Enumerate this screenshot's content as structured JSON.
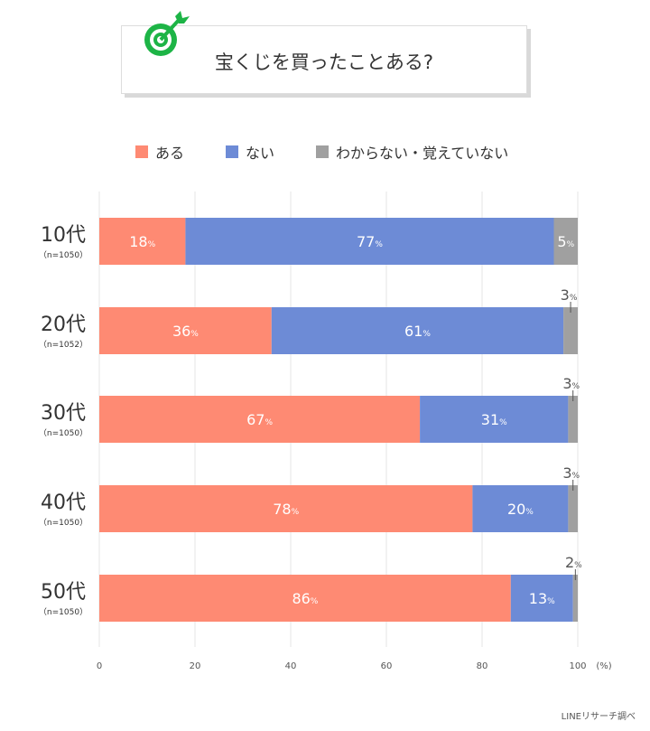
{
  "title": "宝くじを買ったことある?",
  "source": "LINEリサーチ調べ",
  "chart_data": {
    "type": "bar",
    "orientation": "horizontal",
    "stacked": true,
    "categories": [
      "10代",
      "20代",
      "30代",
      "40代",
      "50代"
    ],
    "sample_sizes": [
      "（n=1050）",
      "（n=1052）",
      "（n=1050）",
      "（n=1050）",
      "（n=1050）"
    ],
    "series": [
      {
        "name": "ある",
        "color": "#fe8a73",
        "values": [
          18,
          36,
          67,
          78,
          86
        ]
      },
      {
        "name": "ない",
        "color": "#6d8bd6",
        "values": [
          77,
          61,
          31,
          20,
          13
        ]
      },
      {
        "name": "わからない・覚えていない",
        "color": "#a0a0a0",
        "values": [
          5,
          3,
          3,
          3,
          2
        ]
      }
    ],
    "xlim": [
      0,
      100
    ],
    "xticks": [
      "0",
      "20",
      "40",
      "60",
      "80",
      "100"
    ],
    "xunit": "(%)",
    "value_suffix": "%",
    "grid": true,
    "legend": "top"
  }
}
